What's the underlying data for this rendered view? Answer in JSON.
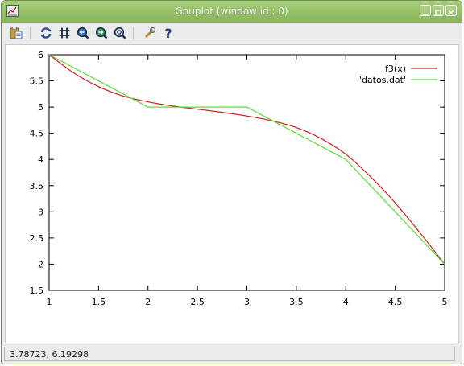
{
  "window": {
    "title": "Gnuplot (window id : 0)"
  },
  "toolbar": {
    "buttons": [
      "copy-to-clipboard",
      "replot",
      "grid",
      "zoom-previous",
      "zoom-next",
      "unzoom",
      "options",
      "help"
    ],
    "help_glyph": "?"
  },
  "statusbar": {
    "coordinates": "3.78723,  6.19298"
  },
  "colors": {
    "title_bar": "#96c16a",
    "series_f3": "#cc2222",
    "series_datos": "#55dd33"
  },
  "chart_data": {
    "type": "line",
    "title": "",
    "xlabel": "",
    "ylabel": "",
    "xlim": [
      1,
      5
    ],
    "ylim": [
      1.5,
      6
    ],
    "x_ticks": [
      "1",
      "1.5",
      "2",
      "2.5",
      "3",
      "3.5",
      "4",
      "4.5",
      "5"
    ],
    "y_ticks": [
      "1.5",
      "2",
      "2.5",
      "3",
      "3.5",
      "4",
      "4.5",
      "5",
      "5.5",
      "6"
    ],
    "x_tick_values": [
      1,
      1.5,
      2,
      2.5,
      3,
      3.5,
      4,
      4.5,
      5
    ],
    "y_tick_values": [
      1.5,
      2,
      2.5,
      3,
      3.5,
      4,
      4.5,
      5,
      5.5,
      6
    ],
    "grid": false,
    "legend_position": "top-right",
    "series": [
      {
        "name": "f3(x)",
        "color": "#cc2222",
        "x": [
          1,
          1.25,
          1.5,
          1.75,
          2,
          2.25,
          2.5,
          2.75,
          3,
          3.25,
          3.5,
          3.75,
          4,
          4.25,
          4.5,
          4.75,
          5
        ],
        "y": [
          6,
          5.65,
          5.39,
          5.21,
          5.1,
          5.02,
          4.96,
          4.9,
          4.83,
          4.74,
          4.61,
          4.4,
          4.1,
          3.67,
          3.17,
          2.6,
          2
        ]
      },
      {
        "name": "'datos.dat'",
        "color": "#55dd33",
        "x": [
          1,
          2,
          3,
          4,
          5
        ],
        "y": [
          6,
          5,
          5,
          4,
          2
        ]
      }
    ]
  }
}
